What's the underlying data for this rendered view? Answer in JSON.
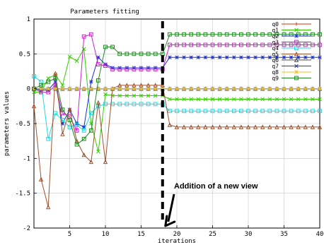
{
  "chart_data": {
    "type": "line",
    "title": "Parameters fitting",
    "xlabel": "iterations",
    "ylabel": "parameters values",
    "xlim": [
      0,
      40
    ],
    "ylim": [
      -2,
      1
    ],
    "xticks": [
      5,
      10,
      15,
      20,
      25,
      30,
      35,
      40
    ],
    "yticks": [
      -2,
      -1.5,
      -1,
      -0.5,
      0,
      0.5,
      1
    ],
    "xtick_labels": [
      "5",
      "10",
      "15",
      "20",
      "25",
      "30",
      "35",
      "40"
    ],
    "ytick_labels": [
      "-2",
      "-1.5",
      "-1",
      "-0.5",
      "0",
      "0.5",
      "1"
    ],
    "grid": true,
    "legend_position": "top-right",
    "x": [
      0,
      1,
      2,
      3,
      4,
      5,
      6,
      7,
      8,
      9,
      10,
      11,
      12,
      13,
      14,
      15,
      16,
      17,
      18,
      19,
      20,
      21,
      22,
      23,
      24,
      25,
      26,
      27,
      28,
      29,
      30,
      31,
      32,
      33,
      34,
      35,
      36,
      37,
      38,
      39,
      40
    ],
    "series": [
      {
        "name": "q0",
        "color": "#d4340a",
        "marker": "plus",
        "values": [
          0,
          0,
          0,
          0,
          0,
          0,
          0,
          0,
          0,
          0,
          0,
          0,
          0,
          0,
          0,
          0,
          0,
          0,
          0,
          0,
          0,
          0,
          0,
          0,
          0,
          0,
          0,
          0,
          0,
          0,
          0,
          0,
          0,
          0,
          0,
          0,
          0,
          0,
          0,
          0,
          0
        ]
      },
      {
        "name": "q1",
        "color": "#33cc00",
        "marker": "x",
        "values": [
          -0.05,
          -0.05,
          0.15,
          0.2,
          0.05,
          0.46,
          0.4,
          0.57,
          -0.5,
          -0.9,
          -0.08,
          -0.1,
          -0.1,
          -0.1,
          -0.1,
          -0.1,
          -0.1,
          -0.1,
          -0.1,
          -0.15,
          -0.15,
          -0.15,
          -0.15,
          -0.15,
          -0.15,
          -0.15,
          -0.15,
          -0.15,
          -0.15,
          -0.15,
          -0.15,
          -0.15,
          -0.15,
          -0.15,
          -0.15,
          -0.15,
          -0.15,
          -0.15,
          -0.15,
          -0.15,
          -0.15
        ]
      },
      {
        "name": "q2",
        "color": "#1a2fd4",
        "marker": "star",
        "values": [
          0,
          -0.02,
          -0.02,
          0.1,
          -0.5,
          -0.3,
          -0.5,
          -0.55,
          0.1,
          0.45,
          0.35,
          0.3,
          0.3,
          0.3,
          0.3,
          0.3,
          0.3,
          0.3,
          0.3,
          0.45,
          0.45,
          0.45,
          0.45,
          0.45,
          0.45,
          0.45,
          0.45,
          0.45,
          0.45,
          0.45,
          0.45,
          0.45,
          0.45,
          0.45,
          0.45,
          0.45,
          0.45,
          0.45,
          0.45,
          0.45,
          0.45
        ]
      },
      {
        "name": "q3",
        "color": "#cc22cc",
        "marker": "square",
        "values": [
          0,
          -0.05,
          -0.05,
          0.05,
          -0.35,
          -0.4,
          -0.6,
          0.75,
          0.78,
          0.35,
          0.33,
          0.28,
          0.28,
          0.28,
          0.28,
          0.28,
          0.28,
          0.28,
          0.28,
          0.63,
          0.63,
          0.63,
          0.63,
          0.63,
          0.63,
          0.63,
          0.63,
          0.63,
          0.63,
          0.63,
          0.63,
          0.63,
          0.63,
          0.63,
          0.63,
          0.63,
          0.63,
          0.63,
          0.63,
          0.63,
          0.63
        ]
      },
      {
        "name": "q4",
        "color": "#22d8e0",
        "marker": "square",
        "values": [
          0.18,
          0.1,
          -0.72,
          -0.35,
          -0.45,
          -0.55,
          -0.52,
          -0.6,
          -0.35,
          -0.25,
          -0.22,
          -0.22,
          -0.22,
          -0.22,
          -0.22,
          -0.22,
          -0.22,
          -0.22,
          -0.22,
          -0.32,
          -0.32,
          -0.32,
          -0.32,
          -0.32,
          -0.32,
          -0.32,
          -0.32,
          -0.32,
          -0.32,
          -0.32,
          -0.32,
          -0.32,
          -0.32,
          -0.32,
          -0.32,
          -0.32,
          -0.32,
          -0.32,
          -0.32,
          -0.32,
          -0.32
        ]
      },
      {
        "name": "q5",
        "color": "#a0522d",
        "marker": "triangle",
        "values": [
          -0.25,
          -1.3,
          -1.7,
          0.22,
          -0.65,
          -0.3,
          -0.75,
          -0.95,
          -1.05,
          -0.2,
          -1.05,
          0,
          0.05,
          0.05,
          0.05,
          0.05,
          0.05,
          0.05,
          0.05,
          -0.52,
          -0.55,
          -0.55,
          -0.55,
          -0.55,
          -0.55,
          -0.55,
          -0.55,
          -0.55,
          -0.55,
          -0.55,
          -0.55,
          -0.55,
          -0.55,
          -0.55,
          -0.55,
          -0.55,
          -0.55,
          -0.55,
          -0.55,
          -0.55,
          -0.55
        ]
      },
      {
        "name": "q6",
        "color": "#555555",
        "marker": "triangle",
        "values": [
          0,
          0,
          0,
          0,
          0,
          0,
          0,
          0,
          0,
          0,
          0,
          0,
          0,
          0,
          0,
          0,
          0,
          0,
          0,
          0,
          0,
          0,
          0,
          0,
          0,
          0,
          0,
          0,
          0,
          0,
          0,
          0,
          0,
          0,
          0,
          0,
          0,
          0,
          0,
          0,
          0
        ]
      },
      {
        "name": "q7",
        "color": "#2a3aa8",
        "marker": "x",
        "values": [
          0,
          0,
          0,
          0,
          0,
          0,
          0,
          0,
          0,
          0,
          0,
          0,
          0,
          0,
          0,
          0,
          0,
          0,
          0,
          0,
          0,
          0,
          0,
          0,
          0,
          0,
          0,
          0,
          0,
          0,
          0,
          0,
          0,
          0,
          0,
          0,
          0,
          0,
          0,
          0,
          0
        ]
      },
      {
        "name": "q8",
        "color": "#f0c020",
        "marker": "star",
        "values": [
          0,
          0,
          0,
          0,
          0,
          0,
          0,
          0,
          0,
          0,
          0,
          0,
          0,
          0,
          0,
          0,
          0,
          0,
          0,
          0,
          0,
          0,
          0,
          0,
          0,
          0,
          0,
          0,
          0,
          0,
          0,
          0,
          0,
          0,
          0,
          0,
          0,
          0,
          0,
          0,
          0
        ]
      },
      {
        "name": "q9",
        "color": "#1e8a1e",
        "marker": "square",
        "values": [
          0,
          0.05,
          0.1,
          0.15,
          -0.3,
          -0.45,
          -0.8,
          -0.72,
          -0.6,
          0.12,
          0.6,
          0.6,
          0.5,
          0.5,
          0.5,
          0.5,
          0.5,
          0.5,
          0.5,
          0.78,
          0.78,
          0.78,
          0.78,
          0.78,
          0.78,
          0.78,
          0.78,
          0.78,
          0.78,
          0.78,
          0.78,
          0.78,
          0.78,
          0.78,
          0.78,
          0.78,
          0.78,
          0.78,
          0.78,
          0.78,
          0.78
        ]
      }
    ],
    "annotations": [
      {
        "text": "Addition of a new view",
        "points_to_x": 18,
        "points_to_y": -2
      }
    ],
    "vertical_marker_x": 18
  }
}
